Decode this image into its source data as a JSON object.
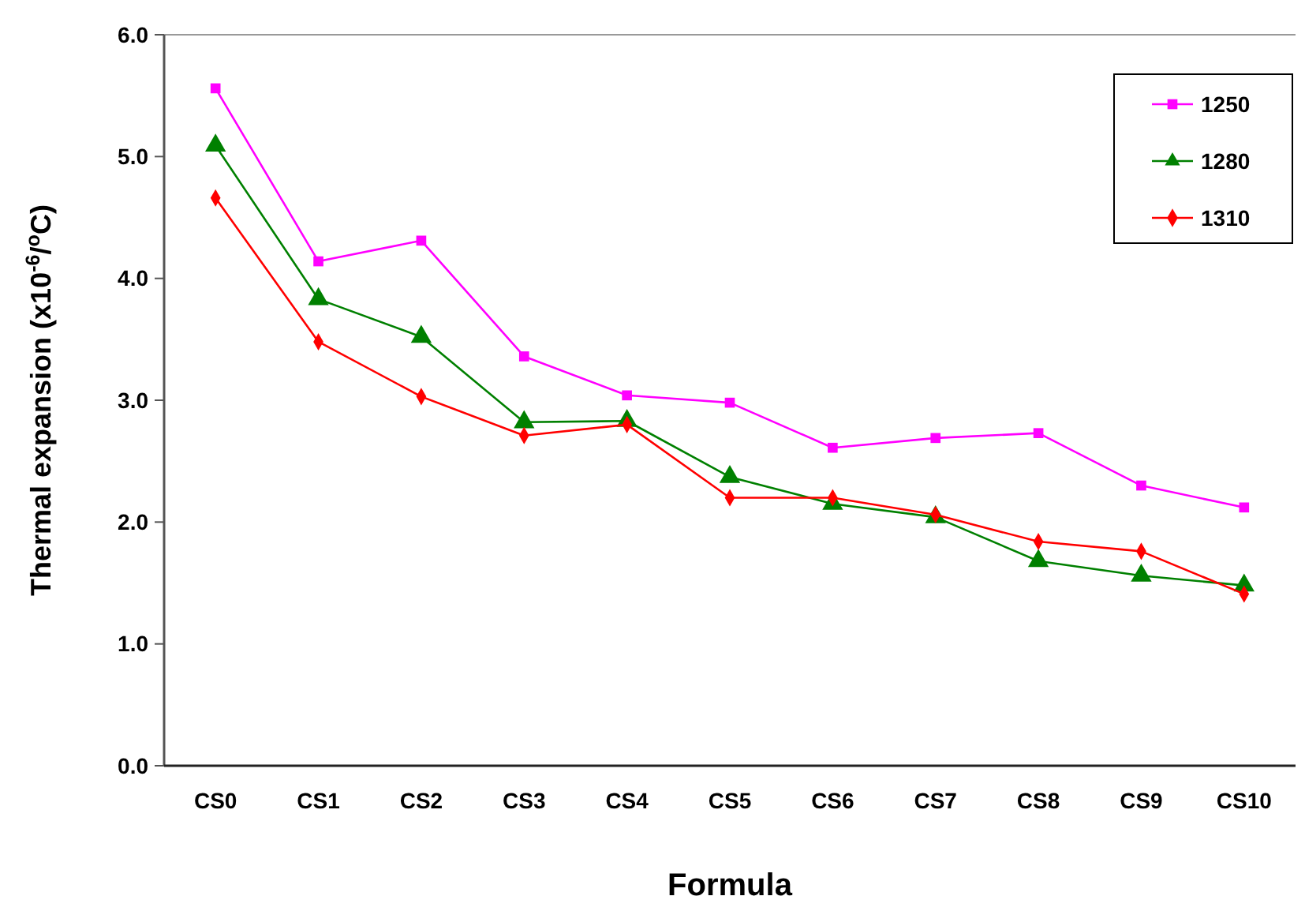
{
  "chart_data": {
    "type": "line",
    "xlabel": "Formula",
    "ylabel": "Thermal expansion (x10$^{-6}$/$^{o}$C)",
    "categories": [
      "CS0",
      "CS1",
      "CS2",
      "CS3",
      "CS4",
      "CS5",
      "CS6",
      "CS7",
      "CS8",
      "CS9",
      "CS10"
    ],
    "ylim": [
      0,
      6
    ],
    "yticks": [
      {
        "value": 0,
        "label": "0.0"
      },
      {
        "value": 1,
        "label": "1.0"
      },
      {
        "value": 2,
        "label": "2.0"
      },
      {
        "value": 3,
        "label": "3.0"
      },
      {
        "value": 4,
        "label": "4.0"
      },
      {
        "value": 5,
        "label": "5.0"
      },
      {
        "value": 6,
        "label": "6.0"
      }
    ],
    "grid": false,
    "legend": "top right",
    "line_style": "solid",
    "series": [
      {
        "name": "1250",
        "color": "#ff00ff",
        "marker": "square",
        "values": [
          5.56,
          4.14,
          4.31,
          3.36,
          3.04,
          2.98,
          2.61,
          2.69,
          2.73,
          2.3,
          2.12
        ]
      },
      {
        "name": "1280",
        "color": "#008000",
        "marker": "triangle",
        "values": [
          5.09,
          3.83,
          3.52,
          2.82,
          2.83,
          2.37,
          2.15,
          2.04,
          1.68,
          1.56,
          1.48
        ]
      },
      {
        "name": "1310",
        "color": "#ff0000",
        "marker": "diamond",
        "values": [
          4.66,
          3.48,
          3.03,
          2.71,
          2.8,
          2.2,
          2.2,
          2.06,
          1.84,
          1.76,
          1.41
        ]
      }
    ]
  }
}
